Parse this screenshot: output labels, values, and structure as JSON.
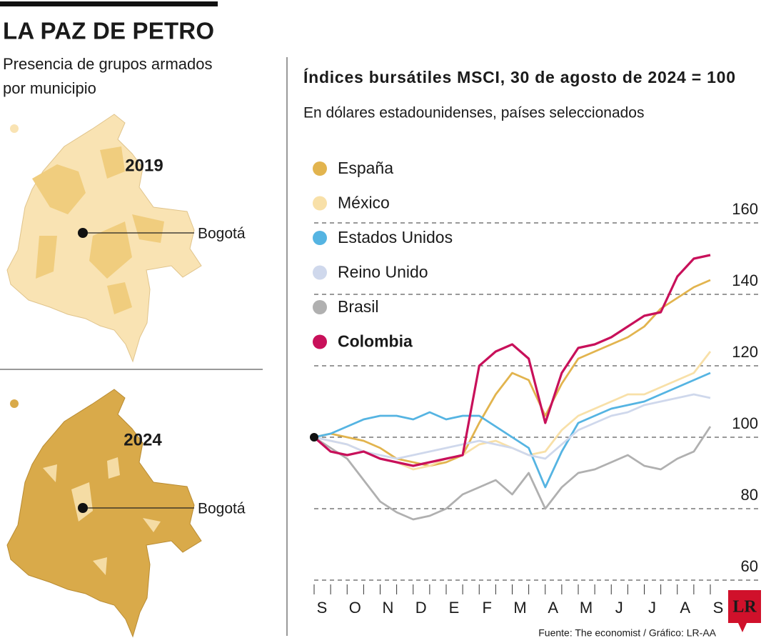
{
  "header": {
    "title": "LA PAZ DE PETRO",
    "subtitle_lines": [
      "Presencia de grupos armados",
      "por municipio"
    ]
  },
  "maps": [
    {
      "year": "2019",
      "label": "Bogotá"
    },
    {
      "year": "2024",
      "label": "Bogotá"
    }
  ],
  "chart_data": {
    "type": "line",
    "title": "Índices bursátiles MSCI, 30 de agosto de 2024 = 100",
    "subtitle": "En dólares estadounidenses, países seleccionados",
    "categories": [
      "S",
      null,
      "O",
      null,
      "N",
      null,
      "D",
      null,
      "E",
      null,
      "F",
      null,
      "M",
      null,
      "A",
      null,
      "M",
      null,
      "J",
      null,
      "J",
      null,
      "A",
      null,
      "S"
    ],
    "series": [
      {
        "name": "España",
        "color": "#e2b44e",
        "values": [
          100,
          101,
          100,
          99,
          97,
          94,
          93,
          92,
          93,
          95,
          104,
          112,
          118,
          116,
          106,
          115,
          122,
          124,
          126,
          128,
          131,
          136,
          139,
          142,
          144
        ]
      },
      {
        "name": "México",
        "color": "#f8e0a8",
        "values": [
          100,
          99,
          98,
          96,
          94,
          93,
          91,
          92,
          94,
          95,
          98,
          99,
          97,
          95,
          96,
          102,
          106,
          108,
          110,
          112,
          112,
          114,
          116,
          118,
          124
        ]
      },
      {
        "name": "Estados Unidos",
        "color": "#55b4e2",
        "values": [
          100,
          101,
          103,
          105,
          106,
          106,
          105,
          107,
          105,
          106,
          106,
          103,
          100,
          97,
          86,
          96,
          104,
          106,
          108,
          109,
          110,
          112,
          114,
          116,
          118
        ]
      },
      {
        "name": "Reino Unido",
        "color": "#cfd8ec",
        "values": [
          100,
          99,
          98,
          96,
          95,
          94,
          95,
          96,
          97,
          98,
          99,
          98,
          97,
          95,
          94,
          98,
          102,
          104,
          106,
          107,
          109,
          110,
          111,
          112,
          111
        ]
      },
      {
        "name": "Brasil",
        "color": "#b0b0b0",
        "values": [
          100,
          97,
          94,
          88,
          82,
          79,
          77,
          78,
          80,
          84,
          86,
          88,
          84,
          90,
          80,
          86,
          90,
          91,
          93,
          95,
          92,
          91,
          94,
          96,
          103
        ]
      },
      {
        "name": "Colombia",
        "color": "#c8105a",
        "bold": true,
        "values": [
          100,
          96,
          95,
          96,
          94,
          93,
          92,
          93,
          94,
          95,
          120,
          124,
          126,
          122,
          104,
          118,
          125,
          126,
          128,
          131,
          134,
          135,
          145,
          150,
          151
        ]
      }
    ],
    "ylim": [
      58,
      162
    ],
    "yticks": [
      60,
      80,
      100,
      120,
      140,
      160
    ],
    "grid": true,
    "source": "Fuente: The economist / Gráfico: LR-AA",
    "logo": "LR"
  }
}
